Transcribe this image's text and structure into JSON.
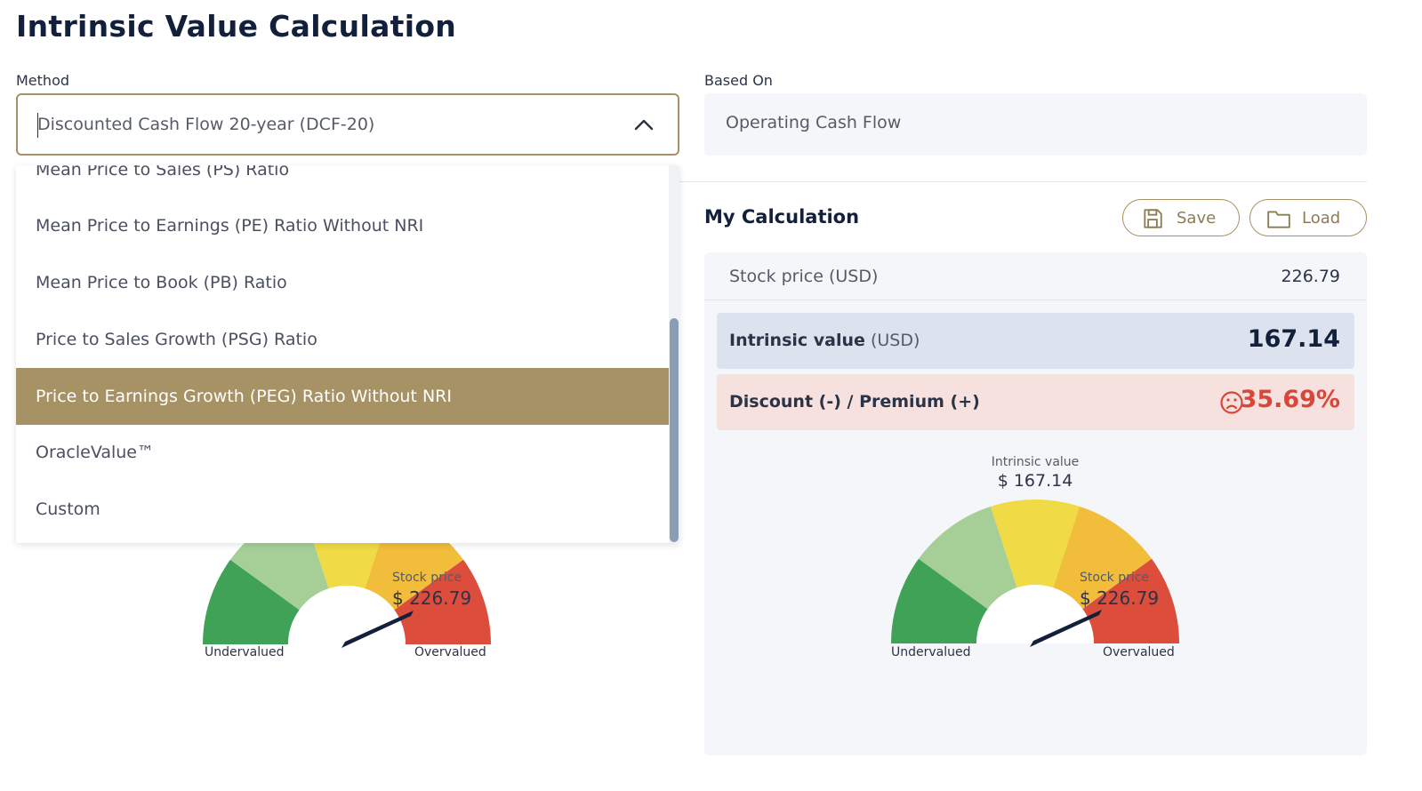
{
  "page": {
    "title": "Intrinsic Value Calculation"
  },
  "method": {
    "label": "Method",
    "selected_value": "Discounted Cash Flow 20-year (DCF-20)",
    "options": [
      "Mean Price to Sales (PS) Ratio",
      "Mean Price to Earnings (PE) Ratio Without NRI",
      "Mean Price to Book (PB) Ratio",
      "Price to Sales Growth (PSG) Ratio",
      "Price to Earnings Growth (PEG) Ratio Without NRI",
      "OracleValue™",
      "Custom"
    ],
    "highlighted_index": 4
  },
  "based_on": {
    "label": "Based On",
    "value": "Operating Cash Flow"
  },
  "my_calculation": {
    "title": "My Calculation",
    "save_label": "Save",
    "load_label": "Load",
    "stock_price_label": "Stock price (USD)",
    "stock_price_value": "226.79",
    "intrinsic_label_bold": "Intrinsic value",
    "intrinsic_label_unit": "(USD)",
    "intrinsic_value": "167.14",
    "discount_label": "Discount (-) / Premium (+)",
    "discount_value": "35.69%"
  },
  "gauges": {
    "intrinsic_caption": "Intrinsic value",
    "intrinsic_value": "$ 167.14",
    "stock_caption": "Stock price",
    "stock_value": "$ 226.79",
    "left_label": "Undervalued",
    "right_label": "Overvalued",
    "colors": [
      "#3fa257",
      "#a5cf97",
      "#f0da45",
      "#f1bd3a",
      "#dc4d3c"
    ]
  },
  "icons": {
    "save": "floppy-disk-icon",
    "load": "folder-icon",
    "discount": "sad-face-icon",
    "select": "chevron-up-icon"
  }
}
